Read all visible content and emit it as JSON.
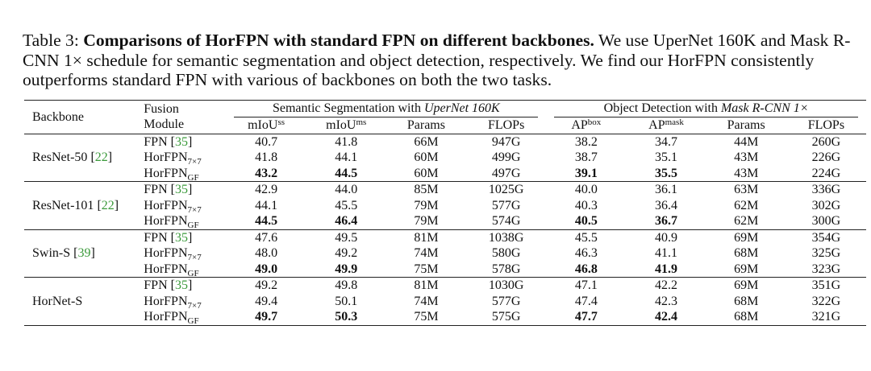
{
  "caption": {
    "label": "Table 3:",
    "title": "Comparisons of HorFPN with standard FPN on different backbones.",
    "text": "We use UperNet 160K and Mask R-CNN 1× schedule for semantic segmentation and object detection, respectively. We find our HorFPN consistently outperforms standard FPN with various of backbones on both the two tasks."
  },
  "table": {
    "header": {
      "backbone": "Backbone",
      "fusion": [
        "Fusion",
        "Module"
      ],
      "groups": [
        {
          "text": "Semantic Segmentation with",
          "italic": "UperNet 160K"
        },
        {
          "text": "Object Detection with",
          "italic": "Mask R-CNN 1×"
        }
      ],
      "columns": [
        {
          "text": "mIoU",
          "sup": "ss"
        },
        {
          "text": "mIoU",
          "sup": "ms"
        },
        {
          "text": "Params"
        },
        {
          "text": "FLOPs"
        },
        {
          "text": "AP",
          "sup": "box"
        },
        {
          "text": "AP",
          "sup": "mask"
        },
        {
          "text": "Params"
        },
        {
          "text": "FLOPs"
        }
      ]
    },
    "groups": [
      {
        "backbone": {
          "name": "ResNet-50",
          "cite": [
            "[",
            "22",
            "]"
          ]
        },
        "rows": [
          {
            "module": {
              "name": "FPN",
              "cite": [
                "[",
                "35",
                "]"
              ]
            },
            "cells": [
              "40.7",
              "41.8",
              "66M",
              "947G",
              "38.2",
              "34.7",
              "44M",
              "260G"
            ]
          },
          {
            "module": {
              "name": "HorFPN",
              "sub": "7×7"
            },
            "cells": [
              "41.8",
              "44.1",
              "60M",
              "499G",
              "38.7",
              "35.1",
              "43M",
              "226G"
            ]
          },
          {
            "module": {
              "name": "HorFPN",
              "sub": "GF"
            },
            "cells": [
              "43.2",
              "44.5",
              "60M",
              "497G",
              "39.1",
              "35.5",
              "43M",
              "224G"
            ],
            "bold": [
              0,
              1,
              4,
              5
            ]
          }
        ]
      },
      {
        "backbone": {
          "name": "ResNet-101",
          "cite": [
            "[",
            "22",
            "]"
          ]
        },
        "rows": [
          {
            "module": {
              "name": "FPN",
              "cite": [
                "[",
                "35",
                "]"
              ]
            },
            "cells": [
              "42.9",
              "44.0",
              "85M",
              "1025G",
              "40.0",
              "36.1",
              "63M",
              "336G"
            ]
          },
          {
            "module": {
              "name": "HorFPN",
              "sub": "7×7"
            },
            "cells": [
              "44.1",
              "45.5",
              "79M",
              "577G",
              "40.3",
              "36.4",
              "62M",
              "302G"
            ]
          },
          {
            "module": {
              "name": "HorFPN",
              "sub": "GF"
            },
            "cells": [
              "44.5",
              "46.4",
              "79M",
              "574G",
              "40.5",
              "36.7",
              "62M",
              "300G"
            ],
            "bold": [
              0,
              1,
              4,
              5
            ]
          }
        ]
      },
      {
        "backbone": {
          "name": "Swin-S",
          "cite": [
            "[",
            "39",
            "]"
          ]
        },
        "rows": [
          {
            "module": {
              "name": "FPN",
              "cite": [
                "[",
                "35",
                "]"
              ]
            },
            "cells": [
              "47.6",
              "49.5",
              "81M",
              "1038G",
              "45.5",
              "40.9",
              "69M",
              "354G"
            ]
          },
          {
            "module": {
              "name": "HorFPN",
              "sub": "7×7"
            },
            "cells": [
              "48.0",
              "49.2",
              "74M",
              "580G",
              "46.3",
              "41.1",
              "68M",
              "325G"
            ]
          },
          {
            "module": {
              "name": "HorFPN",
              "sub": "GF"
            },
            "cells": [
              "49.0",
              "49.9",
              "75M",
              "578G",
              "46.8",
              "41.9",
              "69M",
              "323G"
            ],
            "bold": [
              0,
              1,
              4,
              5
            ]
          }
        ]
      },
      {
        "backbone": {
          "name": "HorNet-S"
        },
        "rows": [
          {
            "module": {
              "name": "FPN",
              "cite": [
                "[",
                "35",
                "]"
              ]
            },
            "cells": [
              "49.2",
              "49.8",
              "81M",
              "1030G",
              "47.1",
              "42.2",
              "69M",
              "351G"
            ]
          },
          {
            "module": {
              "name": "HorFPN",
              "sub": "7×7"
            },
            "cells": [
              "49.4",
              "50.1",
              "74M",
              "577G",
              "47.4",
              "42.3",
              "68M",
              "322G"
            ]
          },
          {
            "module": {
              "name": "HorFPN",
              "sub": "GF"
            },
            "cells": [
              "49.7",
              "50.3",
              "75M",
              "575G",
              "47.7",
              "42.4",
              "68M",
              "321G"
            ],
            "bold": [
              0,
              1,
              4,
              5
            ]
          }
        ]
      }
    ]
  }
}
